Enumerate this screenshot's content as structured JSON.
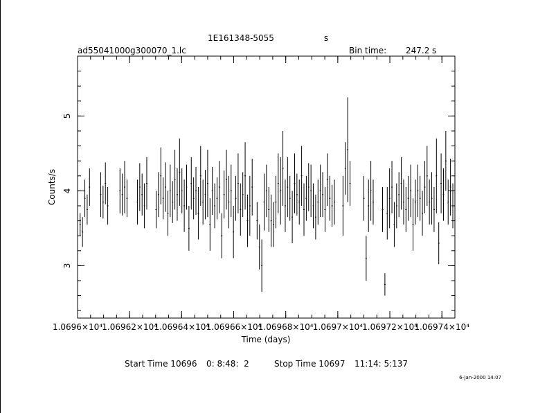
{
  "header": {
    "object": "1E161348-5055",
    "unit_s": "s",
    "filename": "ad55041000g300070_1.lc",
    "bin_label": "Bin time:",
    "bin_value": "247.2",
    "bin_unit": "s"
  },
  "footer": {
    "start_label": "Start Time 10696",
    "start_value": "0: 8:48:  2",
    "stop_label": "Stop Time 10697",
    "stop_value": "11:14: 5:137",
    "timestamp": "6-Jan-2000 14:07"
  },
  "colors": {
    "ink": "#000000",
    "background": "#ffffff"
  },
  "chart_data": {
    "type": "scatter",
    "xlabel": "Time (days)",
    "ylabel": "Counts/s",
    "xlim": [
      10696.0,
      10697.45
    ],
    "ylim": [
      2.3,
      5.8
    ],
    "x_ticks": [
      10696.0,
      10696.2,
      10696.4,
      10696.6,
      10696.8,
      10697.0,
      10697.2,
      10697.4
    ],
    "x_tick_labels": [
      "1.0696×10⁴",
      "1.06962×10⁴",
      "1.06964×10⁴",
      "1.06966×10⁴",
      "1.06968×10⁴",
      "1.0697×10⁴",
      "1.06972×10⁴",
      "1.06974×10⁴"
    ],
    "y_ticks": [
      3,
      4,
      5
    ],
    "y_tick_labels": [
      "3",
      "4",
      "5"
    ],
    "error_bars": true,
    "series": [
      {
        "x": [
          10696.01,
          10696.019,
          10696.028,
          10696.037,
          10696.046,
          10696.089,
          10696.098,
          10696.107,
          10696.116,
          10696.163,
          10696.172,
          10696.181,
          10696.19,
          10696.23,
          10696.239,
          10696.248,
          10696.257,
          10696.266,
          10696.302,
          10696.311,
          10696.32,
          10696.329,
          10696.338,
          10696.347,
          10696.356,
          10696.365,
          10696.374,
          10696.383,
          10696.392,
          10696.401,
          10696.41,
          10696.419,
          10696.428,
          10696.437,
          10696.446,
          10696.455,
          10696.464,
          10696.473,
          10696.482,
          10696.491,
          10696.5,
          10696.509,
          10696.518,
          10696.527,
          10696.536,
          10696.545,
          10696.554,
          10696.563,
          10696.572,
          10696.581,
          10696.59,
          10696.599,
          10696.608,
          10696.617,
          10696.626,
          10696.635,
          10696.644,
          10696.653,
          10696.662,
          10696.671,
          10696.69,
          10696.699,
          10696.708,
          10696.717,
          10696.726,
          10696.735,
          10696.744,
          10696.753,
          10696.762,
          10696.771,
          10696.78,
          10696.789,
          10696.798,
          10696.807,
          10696.816,
          10696.825,
          10696.834,
          10696.843,
          10696.852,
          10696.861,
          10696.87,
          10696.879,
          10696.888,
          10696.897,
          10696.906,
          10696.915,
          10696.924,
          10696.933,
          10696.942,
          10696.951,
          10696.96,
          10696.969,
          10696.978,
          10696.987,
          10697.02,
          10697.029,
          10697.038,
          10697.047,
          10697.1,
          10697.109,
          10697.118,
          10697.127,
          10697.136,
          10697.172,
          10697.181,
          10697.19,
          10697.199,
          10697.208,
          10697.217,
          10697.226,
          10697.235,
          10697.244,
          10697.253,
          10697.262,
          10697.271,
          10697.28,
          10697.289,
          10697.298,
          10697.307,
          10697.316,
          10697.325,
          10697.334,
          10697.343,
          10697.352,
          10697.361,
          10697.37,
          10697.379,
          10697.388,
          10697.397,
          10697.406,
          10697.415,
          10697.424,
          10697.433,
          10697.442
        ],
        "y": [
          3.55,
          3.45,
          3.9,
          3.75,
          4.05,
          3.95,
          3.85,
          4.1,
          3.8,
          4.0,
          3.95,
          4.05,
          3.9,
          3.85,
          4.05,
          3.95,
          3.8,
          4.1,
          3.75,
          3.95,
          4.2,
          3.9,
          4.05,
          3.7,
          4.0,
          3.85,
          4.15,
          3.95,
          4.25,
          4.0,
          3.8,
          4.05,
          3.5,
          4.1,
          3.9,
          4.0,
          3.7,
          4.2,
          3.85,
          3.95,
          4.1,
          3.55,
          4.0,
          3.8,
          3.9,
          4.05,
          3.4,
          3.95,
          4.15,
          3.85,
          4.0,
          3.45,
          3.9,
          4.1,
          3.75,
          3.95,
          4.2,
          3.6,
          3.8,
          4.05,
          3.6,
          3.25,
          3.0,
          3.85,
          4.0,
          3.75,
          3.6,
          3.55,
          3.85,
          4.1,
          4.0,
          4.3,
          3.8,
          4.05,
          3.9,
          3.65,
          4.1,
          3.95,
          3.85,
          4.2,
          3.75,
          3.9,
          4.05,
          4.0,
          3.8,
          3.65,
          3.85,
          4.0,
          3.95,
          3.75,
          4.15,
          3.9,
          3.8,
          3.85,
          3.8,
          4.3,
          4.55,
          4.1,
          3.9,
          3.1,
          3.8,
          4.0,
          3.85,
          3.75,
          2.75,
          3.7,
          3.9,
          4.05,
          3.55,
          3.8,
          3.95,
          4.1,
          3.85,
          3.75,
          3.9,
          4.0,
          3.55,
          3.85,
          4.0,
          3.9,
          3.7,
          4.05,
          4.2,
          3.85,
          3.9,
          3.75,
          4.2,
          3.3,
          4.1,
          3.95,
          4.4,
          3.85,
          4.05,
          3.8
        ],
        "err": [
          0.15,
          0.2,
          0.25,
          0.2,
          0.25,
          0.3,
          0.22,
          0.28,
          0.25,
          0.3,
          0.28,
          0.35,
          0.25,
          0.3,
          0.32,
          0.28,
          0.3,
          0.35,
          0.25,
          0.3,
          0.38,
          0.28,
          0.33,
          0.3,
          0.35,
          0.28,
          0.4,
          0.35,
          0.45,
          0.3,
          0.35,
          0.3,
          0.3,
          0.35,
          0.28,
          0.32,
          0.35,
          0.4,
          0.3,
          0.33,
          0.45,
          0.35,
          0.32,
          0.3,
          0.28,
          0.35,
          0.3,
          0.32,
          0.4,
          0.35,
          0.35,
          0.35,
          0.3,
          0.4,
          0.35,
          0.3,
          0.45,
          0.35,
          0.4,
          0.38,
          0.25,
          0.3,
          0.35,
          0.38,
          0.35,
          0.3,
          0.35,
          0.3,
          0.35,
          0.4,
          0.45,
          0.5,
          0.35,
          0.4,
          0.3,
          0.35,
          0.4,
          0.28,
          0.3,
          0.4,
          0.35,
          0.3,
          0.32,
          0.35,
          0.3,
          0.3,
          0.3,
          0.35,
          0.3,
          0.3,
          0.35,
          0.3,
          0.28,
          0.3,
          0.4,
          0.35,
          0.7,
          0.3,
          0.3,
          0.3,
          0.35,
          0.4,
          0.3,
          0.3,
          0.15,
          0.35,
          0.4,
          0.35,
          0.3,
          0.3,
          0.3,
          0.35,
          0.3,
          0.3,
          0.3,
          0.35,
          0.35,
          0.3,
          0.35,
          0.3,
          0.3,
          0.35,
          0.4,
          0.3,
          0.35,
          0.3,
          0.5,
          0.28,
          0.4,
          0.35,
          0.4,
          0.3,
          0.38,
          0.3
        ]
      }
    ]
  }
}
